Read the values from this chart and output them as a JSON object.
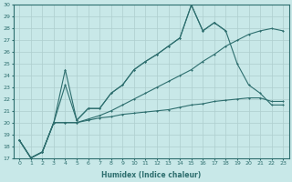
{
  "xlabel": "Humidex (Indice chaleur)",
  "x": [
    0,
    1,
    2,
    3,
    4,
    5,
    6,
    7,
    8,
    9,
    10,
    11,
    12,
    13,
    14,
    15,
    16,
    17,
    18,
    19,
    20,
    21,
    22,
    23
  ],
  "line1": [
    18.5,
    17.0,
    17.5,
    20.0,
    24.5,
    20.2,
    21.2,
    21.2,
    22.5,
    23.2,
    24.5,
    25.2,
    25.8,
    26.5,
    27.2,
    30.0,
    27.8,
    28.5,
    27.8,
    null,
    null,
    null,
    null,
    null
  ],
  "line2": [
    18.5,
    17.0,
    17.5,
    20.0,
    23.2,
    20.2,
    21.2,
    21.2,
    22.5,
    23.2,
    24.5,
    25.2,
    25.8,
    26.5,
    27.2,
    30.0,
    27.8,
    28.5,
    27.8,
    25.0,
    23.2,
    22.5,
    21.5,
    21.5
  ],
  "line3": [
    18.5,
    17.0,
    17.5,
    20.0,
    20.0,
    20.0,
    20.2,
    20.4,
    20.5,
    20.7,
    20.8,
    20.9,
    21.0,
    21.1,
    21.3,
    21.5,
    21.6,
    21.8,
    21.9,
    22.0,
    22.1,
    22.1,
    21.8,
    21.8
  ],
  "line4": [
    18.5,
    17.0,
    17.5,
    20.0,
    20.0,
    20.0,
    20.3,
    20.6,
    21.0,
    21.5,
    22.0,
    22.5,
    23.0,
    23.5,
    24.0,
    24.5,
    25.2,
    25.8,
    26.5,
    27.0,
    27.5,
    27.8,
    28.0,
    27.8
  ],
  "line_color": "#2d6e6e",
  "bg_color": "#c8e8e8",
  "grid_color": "#aecece",
  "ylim": [
    17,
    30
  ],
  "xlim": [
    -0.5,
    23.5
  ],
  "yticks": [
    17,
    18,
    19,
    20,
    21,
    22,
    23,
    24,
    25,
    26,
    27,
    28,
    29,
    30
  ],
  "xticks": [
    0,
    1,
    2,
    3,
    4,
    5,
    6,
    7,
    8,
    9,
    10,
    11,
    12,
    13,
    14,
    15,
    16,
    17,
    18,
    19,
    20,
    21,
    22,
    23
  ]
}
